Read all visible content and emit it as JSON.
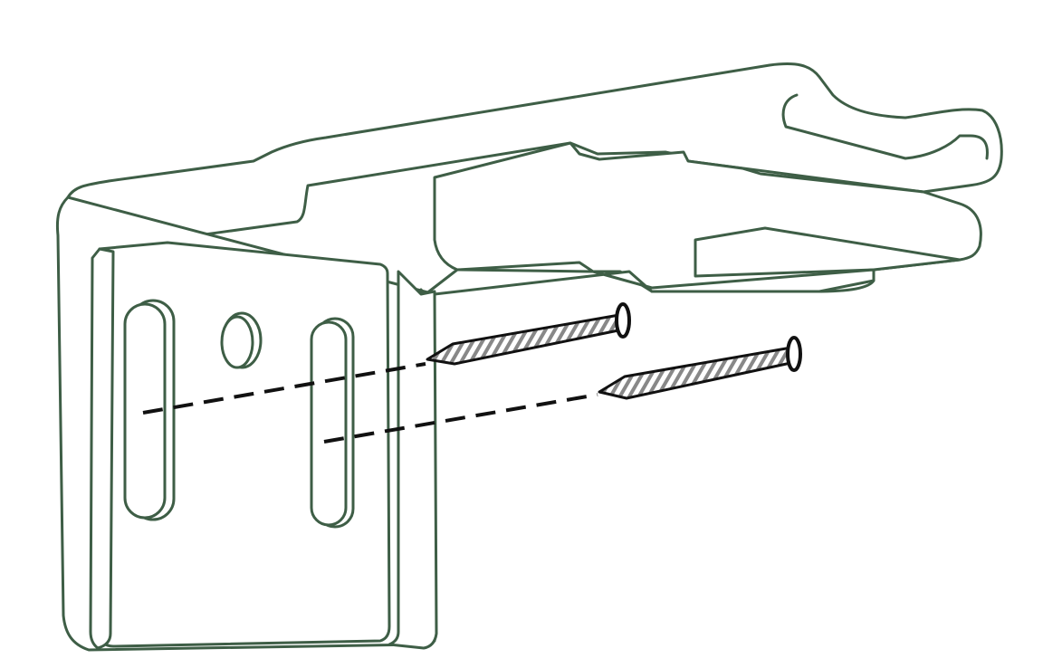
{
  "diagram": {
    "subject": "bracket-mounting-with-two-screws",
    "screw_count": 2,
    "slot_count": 2,
    "round_hole_count": 1,
    "colors": {
      "bracket_outline": "#3e5e46",
      "screw": "#111111",
      "screw_thread": "#888888",
      "guide_line": "#111111",
      "background": "#ffffff"
    }
  }
}
